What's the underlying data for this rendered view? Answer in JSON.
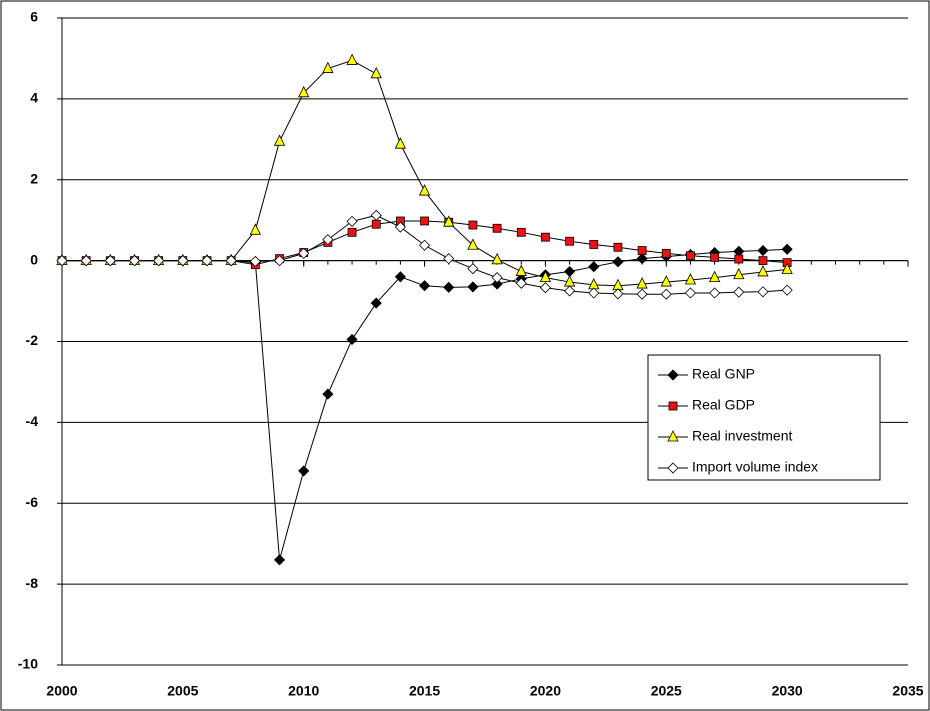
{
  "chart_data": {
    "type": "line",
    "x": [
      2000,
      2001,
      2002,
      2003,
      2004,
      2005,
      2006,
      2007,
      2008,
      2009,
      2010,
      2011,
      2012,
      2013,
      2014,
      2015,
      2016,
      2017,
      2018,
      2019,
      2020,
      2021,
      2022,
      2023,
      2024,
      2025,
      2026,
      2027,
      2028,
      2029,
      2030
    ],
    "series": [
      {
        "name": "Real GNP",
        "color": "#000000",
        "marker": "diamond",
        "values": [
          0,
          0,
          0,
          0,
          0,
          0,
          0,
          0,
          -0.05,
          -7.4,
          -5.2,
          -3.3,
          -1.95,
          -1.05,
          -0.4,
          -0.62,
          -0.66,
          -0.65,
          -0.58,
          -0.45,
          -0.35,
          -0.27,
          -0.15,
          -0.03,
          0.05,
          0.1,
          0.15,
          0.2,
          0.23,
          0.25,
          0.28
        ]
      },
      {
        "name": "Real GDP",
        "color": "#ee1111",
        "marker": "square",
        "values": [
          0,
          0,
          0,
          0,
          0,
          0,
          0,
          0,
          -0.1,
          0.05,
          0.2,
          0.45,
          0.7,
          0.9,
          0.98,
          0.98,
          0.95,
          0.88,
          0.8,
          0.7,
          0.58,
          0.48,
          0.4,
          0.33,
          0.25,
          0.18,
          0.12,
          0.08,
          0.04,
          0.0,
          -0.05
        ]
      },
      {
        "name": "Real investment",
        "color": "#ffff00",
        "marker": "triangle",
        "values": [
          0,
          0,
          0,
          0,
          0,
          0,
          0,
          0,
          0.75,
          2.95,
          4.15,
          4.75,
          4.95,
          4.62,
          2.88,
          1.72,
          0.95,
          0.38,
          0.02,
          -0.27,
          -0.42,
          -0.53,
          -0.6,
          -0.62,
          -0.58,
          -0.53,
          -0.48,
          -0.42,
          -0.35,
          -0.28,
          -0.22
        ]
      },
      {
        "name": "Import volume index",
        "color": "#ffffff",
        "marker": "diamond",
        "values": [
          0,
          0,
          0,
          0,
          0,
          0,
          0,
          0,
          -0.02,
          0.0,
          0.18,
          0.52,
          0.97,
          1.12,
          0.83,
          0.38,
          0.05,
          -0.2,
          -0.42,
          -0.56,
          -0.67,
          -0.75,
          -0.8,
          -0.82,
          -0.83,
          -0.83,
          -0.8,
          -0.8,
          -0.78,
          -0.77,
          -0.73
        ]
      }
    ],
    "xlim": [
      2000,
      2035
    ],
    "xticks": [
      2000,
      2005,
      2010,
      2015,
      2020,
      2025,
      2030,
      2035
    ],
    "ylim": [
      -10,
      6
    ],
    "yticks": [
      -10,
      -8,
      -6,
      -4,
      -2,
      0,
      2,
      4,
      6
    ],
    "grid": true,
    "legend": "right"
  }
}
